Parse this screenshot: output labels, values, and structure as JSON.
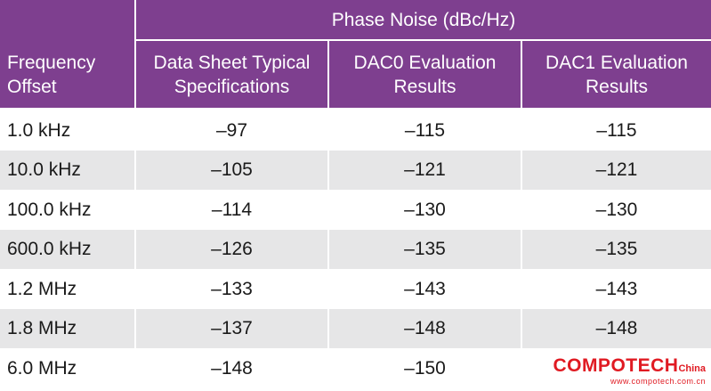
{
  "table": {
    "group_header": "Phase Noise (dBc/Hz)",
    "columns": [
      "Frequency\nOffset",
      "Data Sheet Typical\nSpecifications",
      "DAC0 Evaluation\nResults",
      "DAC1 Evaluation\nResults"
    ],
    "rows": [
      [
        "1.0 kHz",
        "–97",
        "–115",
        "–115"
      ],
      [
        "10.0 kHz",
        "–105",
        "–121",
        "–121"
      ],
      [
        "100.0 kHz",
        "–114",
        "–130",
        "–130"
      ],
      [
        "600.0 kHz",
        "–126",
        "–135",
        "–135"
      ],
      [
        "1.2 MHz",
        "–133",
        "–143",
        "–143"
      ],
      [
        "1.8 MHz",
        "–137",
        "–148",
        "–148"
      ],
      [
        "6.0 MHz",
        "–148",
        "–150",
        ""
      ]
    ]
  },
  "colors": {
    "header_bg": "#7e3f8f",
    "alt_row": "#e6e6e7",
    "watermark": "#e01a22"
  },
  "watermark": {
    "brand": "COMPOTECH",
    "region": "China",
    "url": "www.compotech.com.cn"
  }
}
